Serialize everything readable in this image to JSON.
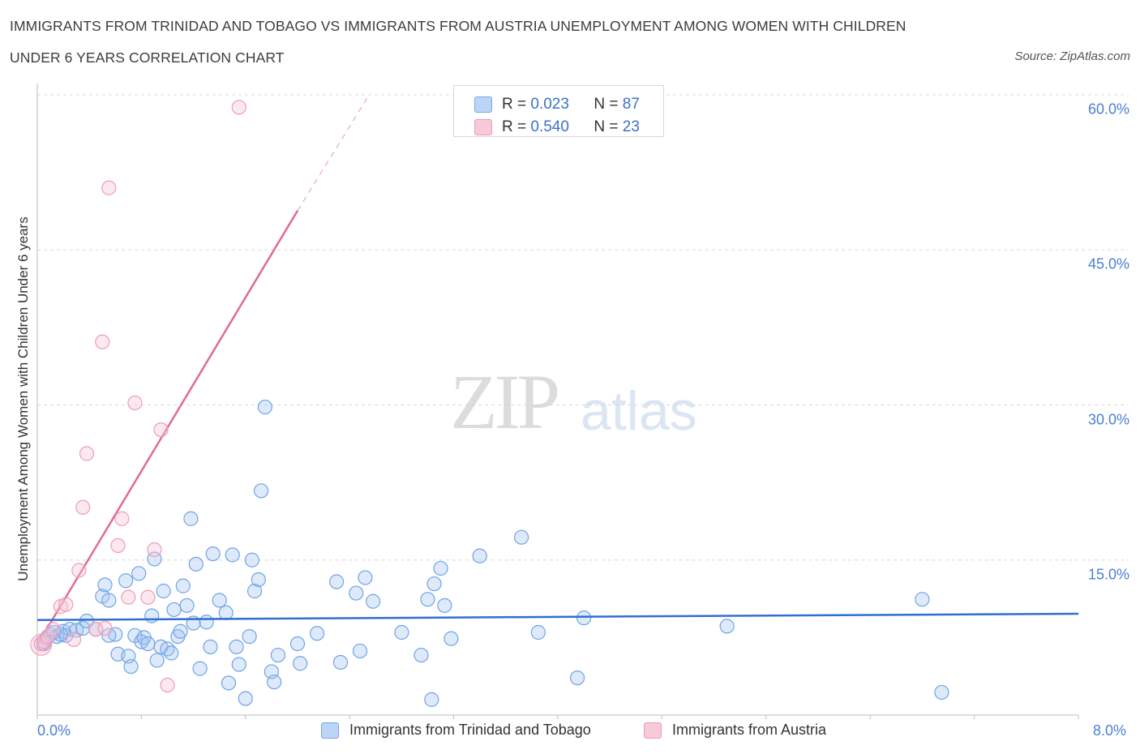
{
  "title_line1": "IMMIGRANTS FROM TRINIDAD AND TOBAGO VS IMMIGRANTS FROM AUSTRIA UNEMPLOYMENT AMONG WOMEN WITH CHILDREN",
  "title_line2": "UNDER 6 YEARS CORRELATION CHART",
  "source": "Source: ZipAtlas.com",
  "watermark_zip": "ZIP",
  "watermark_atlas": "atlas",
  "legend": {
    "r_label": "R =",
    "n_label": "N =",
    "rows": [
      {
        "r": "0.023",
        "n": "87"
      },
      {
        "r": "0.540",
        "n": "23"
      }
    ]
  },
  "chart_data": {
    "type": "scatter",
    "title": "IMMIGRANTS FROM TRINIDAD AND TOBAGO VS IMMIGRANTS FROM AUSTRIA UNEMPLOYMENT AMONG WOMEN WITH CHILDREN UNDER 6 YEARS CORRELATION CHART",
    "xlabel": "",
    "ylabel": "Unemployment Among Women with Children Under 6 years",
    "xlim": [
      0,
      8
    ],
    "ylim": [
      0,
      60
    ],
    "x_tick_labels": [
      "0.0%",
      "8.0%"
    ],
    "y_ticks": [
      15,
      30,
      45,
      60
    ],
    "y_tick_labels": [
      "15.0%",
      "30.0%",
      "45.0%",
      "60.0%"
    ],
    "grid": true,
    "legend_position": "top-center",
    "colors": {
      "series1": "#6fa3e6",
      "series2": "#ef9ab8",
      "trend1": "#2e6fd0",
      "trend2": "#e06a96"
    },
    "series": [
      {
        "name": "Immigrants from Trinidad and Tobago",
        "r": 0.023,
        "n": 87,
        "trend": {
          "x0": 0.0,
          "y0": 9.2,
          "x1": 8.0,
          "y1": 9.8
        },
        "points": [
          [
            0.05,
            6.9
          ],
          [
            0.07,
            7.4
          ],
          [
            0.1,
            7.8
          ],
          [
            0.13,
            8.0
          ],
          [
            0.15,
            7.6
          ],
          [
            0.2,
            8.1
          ],
          [
            0.22,
            7.7
          ],
          [
            0.25,
            8.3
          ],
          [
            0.3,
            8.2
          ],
          [
            0.35,
            8.4
          ],
          [
            0.38,
            9.1
          ],
          [
            0.45,
            8.3
          ],
          [
            0.5,
            11.5
          ],
          [
            0.52,
            12.6
          ],
          [
            0.55,
            11.1
          ],
          [
            0.6,
            7.8
          ],
          [
            0.62,
            5.9
          ],
          [
            0.68,
            13.0
          ],
          [
            0.7,
            5.7
          ],
          [
            0.72,
            4.7
          ],
          [
            0.75,
            7.7
          ],
          [
            0.78,
            13.7
          ],
          [
            0.8,
            7.1
          ],
          [
            0.82,
            7.5
          ],
          [
            0.85,
            6.9
          ],
          [
            0.88,
            9.6
          ],
          [
            0.9,
            15.1
          ],
          [
            0.92,
            5.3
          ],
          [
            0.95,
            6.6
          ],
          [
            0.97,
            12.0
          ],
          [
            1.0,
            6.4
          ],
          [
            1.03,
            6.0
          ],
          [
            1.05,
            10.2
          ],
          [
            1.08,
            7.6
          ],
          [
            1.1,
            8.1
          ],
          [
            1.12,
            12.5
          ],
          [
            1.15,
            10.6
          ],
          [
            1.18,
            19.0
          ],
          [
            1.2,
            8.9
          ],
          [
            1.22,
            14.6
          ],
          [
            1.25,
            4.5
          ],
          [
            1.3,
            9.0
          ],
          [
            1.33,
            6.6
          ],
          [
            1.35,
            15.6
          ],
          [
            1.4,
            11.1
          ],
          [
            1.45,
            9.9
          ],
          [
            1.47,
            3.1
          ],
          [
            1.5,
            15.5
          ],
          [
            1.53,
            6.6
          ],
          [
            1.55,
            4.9
          ],
          [
            1.6,
            1.6
          ],
          [
            1.63,
            7.6
          ],
          [
            1.65,
            15.0
          ],
          [
            1.67,
            12.0
          ],
          [
            1.7,
            13.1
          ],
          [
            1.72,
            21.7
          ],
          [
            1.75,
            29.8
          ],
          [
            1.8,
            4.2
          ],
          [
            1.82,
            3.2
          ],
          [
            1.85,
            5.8
          ],
          [
            2.0,
            6.9
          ],
          [
            2.02,
            5.0
          ],
          [
            2.15,
            7.9
          ],
          [
            2.3,
            12.9
          ],
          [
            2.33,
            5.1
          ],
          [
            2.45,
            11.8
          ],
          [
            2.48,
            6.2
          ],
          [
            2.52,
            13.3
          ],
          [
            2.58,
            11.0
          ],
          [
            2.8,
            8.0
          ],
          [
            2.95,
            5.8
          ],
          [
            3.0,
            11.2
          ],
          [
            3.03,
            1.5
          ],
          [
            3.05,
            12.7
          ],
          [
            3.1,
            14.2
          ],
          [
            3.13,
            10.6
          ],
          [
            3.18,
            7.4
          ],
          [
            3.4,
            15.4
          ],
          [
            3.72,
            17.2
          ],
          [
            3.85,
            8.0
          ],
          [
            4.15,
            3.6
          ],
          [
            4.2,
            9.4
          ],
          [
            5.3,
            8.6
          ],
          [
            6.8,
            11.2
          ],
          [
            6.95,
            2.2
          ],
          [
            0.55,
            7.7
          ],
          [
            0.18,
            7.8
          ]
        ]
      },
      {
        "name": "Immigrants from Austria",
        "r": 0.54,
        "n": 23,
        "trend": {
          "x0": 0.0,
          "y0": 6.8,
          "x1": 2.0,
          "y1": 48.8,
          "dashed_to": {
            "x": 2.55,
            "y": 60.0
          }
        },
        "points": [
          [
            0.03,
            6.9
          ],
          [
            0.05,
            7.1
          ],
          [
            0.08,
            7.6
          ],
          [
            0.12,
            8.3
          ],
          [
            0.18,
            10.5
          ],
          [
            0.22,
            10.7
          ],
          [
            0.28,
            7.3
          ],
          [
            0.32,
            14.0
          ],
          [
            0.35,
            20.1
          ],
          [
            0.38,
            25.3
          ],
          [
            0.45,
            8.3
          ],
          [
            0.5,
            36.1
          ],
          [
            0.52,
            8.4
          ],
          [
            0.55,
            51.0
          ],
          [
            0.62,
            16.4
          ],
          [
            0.65,
            19.0
          ],
          [
            0.7,
            11.4
          ],
          [
            0.75,
            30.2
          ],
          [
            0.85,
            11.4
          ],
          [
            0.9,
            16.0
          ],
          [
            0.95,
            27.6
          ],
          [
            1.0,
            2.9
          ],
          [
            1.55,
            58.8
          ]
        ]
      }
    ]
  }
}
